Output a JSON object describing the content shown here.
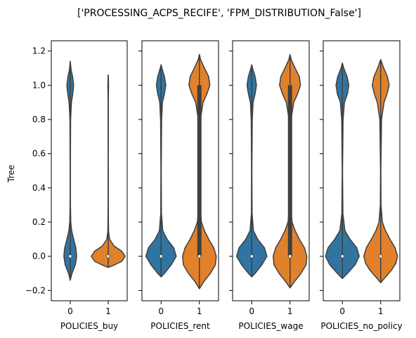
{
  "chart_data": {
    "type": "violin",
    "title": "['PROCESSING_ACPS_RECIFE', 'FPM_DISTRIBUTION_False']",
    "ylabel": "Tree",
    "ylim": [
      -0.26,
      1.26
    ],
    "yticks": [
      -0.2,
      0.0,
      0.2,
      0.4,
      0.6,
      0.8,
      1.0,
      1.2
    ],
    "ytick_labels": [
      "−0.2",
      "0.0",
      "0.2",
      "0.4",
      "0.6",
      "0.8",
      "1.0",
      "1.2"
    ],
    "categories": [
      "0",
      "1"
    ],
    "colors": {
      "0": "#3274a1",
      "1": "#e1812c",
      "edge": "#3f3f3f",
      "median": "#ffffff"
    },
    "panels": [
      {
        "xlabel": "POLICIES_buy",
        "violins": [
          {
            "category": "0",
            "min": -0.14,
            "max": 1.14,
            "q1": 0.0,
            "median": 0.0,
            "q3": 0.0,
            "density": [
              [
                -0.14,
                0.0
              ],
              [
                -0.1,
                0.1
              ],
              [
                -0.05,
                0.3
              ],
              [
                0.0,
                0.38
              ],
              [
                0.05,
                0.33
              ],
              [
                0.1,
                0.2
              ],
              [
                0.15,
                0.08
              ],
              [
                0.2,
                0.03
              ],
              [
                0.3,
                0.01
              ],
              [
                0.5,
                0.006
              ],
              [
                0.8,
                0.02
              ],
              [
                0.9,
                0.07
              ],
              [
                0.95,
                0.15
              ],
              [
                1.0,
                0.2
              ],
              [
                1.05,
                0.14
              ],
              [
                1.09,
                0.05
              ],
              [
                1.14,
                0.0
              ]
            ]
          },
          {
            "category": "1",
            "min": -0.065,
            "max": 1.06,
            "q1": 0.0,
            "median": 0.0,
            "q3": 0.0,
            "density": [
              [
                -0.065,
                0.0
              ],
              [
                -0.05,
                0.38
              ],
              [
                -0.03,
                0.8
              ],
              [
                0.0,
                1.0
              ],
              [
                0.03,
                0.8
              ],
              [
                0.06,
                0.35
              ],
              [
                0.1,
                0.08
              ],
              [
                0.15,
                0.02
              ],
              [
                0.3,
                0.004
              ],
              [
                0.6,
                0.003
              ],
              [
                0.9,
                0.005
              ],
              [
                1.0,
                0.02
              ],
              [
                1.04,
                0.01
              ],
              [
                1.06,
                0.0
              ]
            ]
          }
        ]
      },
      {
        "xlabel": "POLICIES_rent",
        "violins": [
          {
            "category": "0",
            "min": -0.12,
            "max": 1.12,
            "q1": 0.0,
            "median": 0.0,
            "q3": 0.0,
            "density": [
              [
                -0.12,
                0.0
              ],
              [
                -0.1,
                0.2
              ],
              [
                -0.05,
                0.6
              ],
              [
                0.0,
                0.9
              ],
              [
                0.05,
                0.75
              ],
              [
                0.1,
                0.35
              ],
              [
                0.15,
                0.1
              ],
              [
                0.25,
                0.02
              ],
              [
                0.5,
                0.01
              ],
              [
                0.8,
                0.03
              ],
              [
                0.9,
                0.08
              ],
              [
                0.95,
                0.2
              ],
              [
                1.0,
                0.28
              ],
              [
                1.05,
                0.2
              ],
              [
                1.1,
                0.05
              ],
              [
                1.12,
                0.0
              ]
            ]
          },
          {
            "category": "1",
            "min": -0.19,
            "max": 1.18,
            "q1": 0.0,
            "median": 0.0,
            "q3": 1.0,
            "density": [
              [
                -0.19,
                0.0
              ],
              [
                -0.15,
                0.25
              ],
              [
                -0.1,
                0.65
              ],
              [
                -0.05,
                0.95
              ],
              [
                0.0,
                1.0
              ],
              [
                0.05,
                0.85
              ],
              [
                0.1,
                0.55
              ],
              [
                0.15,
                0.3
              ],
              [
                0.2,
                0.12
              ],
              [
                0.3,
                0.03
              ],
              [
                0.5,
                0.01
              ],
              [
                0.8,
                0.06
              ],
              [
                0.9,
                0.22
              ],
              [
                0.95,
                0.45
              ],
              [
                1.0,
                0.62
              ],
              [
                1.05,
                0.55
              ],
              [
                1.1,
                0.3
              ],
              [
                1.15,
                0.07
              ],
              [
                1.18,
                0.0
              ]
            ]
          }
        ]
      },
      {
        "xlabel": "POLICIES_wage",
        "violins": [
          {
            "category": "0",
            "min": -0.12,
            "max": 1.12,
            "q1": 0.0,
            "median": 0.0,
            "q3": 0.0,
            "density": [
              [
                -0.12,
                0.0
              ],
              [
                -0.1,
                0.2
              ],
              [
                -0.05,
                0.6
              ],
              [
                0.0,
                0.9
              ],
              [
                0.05,
                0.75
              ],
              [
                0.1,
                0.35
              ],
              [
                0.15,
                0.1
              ],
              [
                0.25,
                0.02
              ],
              [
                0.5,
                0.01
              ],
              [
                0.8,
                0.03
              ],
              [
                0.9,
                0.08
              ],
              [
                0.95,
                0.2
              ],
              [
                1.0,
                0.28
              ],
              [
                1.05,
                0.2
              ],
              [
                1.1,
                0.05
              ],
              [
                1.12,
                0.0
              ]
            ]
          },
          {
            "category": "1",
            "min": -0.185,
            "max": 1.18,
            "q1": 0.0,
            "median": 0.0,
            "q3": 1.0,
            "density": [
              [
                -0.185,
                0.0
              ],
              [
                -0.15,
                0.25
              ],
              [
                -0.1,
                0.65
              ],
              [
                -0.05,
                0.95
              ],
              [
                0.0,
                1.0
              ],
              [
                0.05,
                0.85
              ],
              [
                0.1,
                0.55
              ],
              [
                0.15,
                0.3
              ],
              [
                0.2,
                0.12
              ],
              [
                0.3,
                0.03
              ],
              [
                0.5,
                0.01
              ],
              [
                0.8,
                0.06
              ],
              [
                0.9,
                0.22
              ],
              [
                0.95,
                0.45
              ],
              [
                1.0,
                0.62
              ],
              [
                1.05,
                0.55
              ],
              [
                1.1,
                0.3
              ],
              [
                1.15,
                0.07
              ],
              [
                1.18,
                0.0
              ]
            ]
          }
        ]
      },
      {
        "xlabel": "POLICIES_no_policy",
        "violins": [
          {
            "category": "0",
            "min": -0.13,
            "max": 1.13,
            "q1": 0.0,
            "median": 0.0,
            "q3": 0.0,
            "density": [
              [
                -0.13,
                0.0
              ],
              [
                -0.1,
                0.3
              ],
              [
                -0.05,
                0.75
              ],
              [
                0.0,
                1.0
              ],
              [
                0.05,
                0.85
              ],
              [
                0.1,
                0.45
              ],
              [
                0.15,
                0.15
              ],
              [
                0.25,
                0.03
              ],
              [
                0.5,
                0.01
              ],
              [
                0.8,
                0.04
              ],
              [
                0.9,
                0.12
              ],
              [
                0.95,
                0.3
              ],
              [
                1.0,
                0.38
              ],
              [
                1.05,
                0.28
              ],
              [
                1.1,
                0.08
              ],
              [
                1.13,
                0.0
              ]
            ]
          },
          {
            "category": "1",
            "min": -0.155,
            "max": 1.15,
            "q1": 0.0,
            "median": 0.0,
            "q3": 0.0,
            "density": [
              [
                -0.155,
                0.0
              ],
              [
                -0.12,
                0.3
              ],
              [
                -0.08,
                0.65
              ],
              [
                -0.04,
                0.9
              ],
              [
                0.0,
                1.0
              ],
              [
                0.05,
                0.85
              ],
              [
                0.1,
                0.55
              ],
              [
                0.15,
                0.28
              ],
              [
                0.2,
                0.1
              ],
              [
                0.3,
                0.02
              ],
              [
                0.5,
                0.01
              ],
              [
                0.8,
                0.05
              ],
              [
                0.9,
                0.2
              ],
              [
                0.95,
                0.38
              ],
              [
                1.0,
                0.5
              ],
              [
                1.05,
                0.4
              ],
              [
                1.1,
                0.18
              ],
              [
                1.15,
                0.0
              ]
            ]
          }
        ]
      }
    ]
  }
}
